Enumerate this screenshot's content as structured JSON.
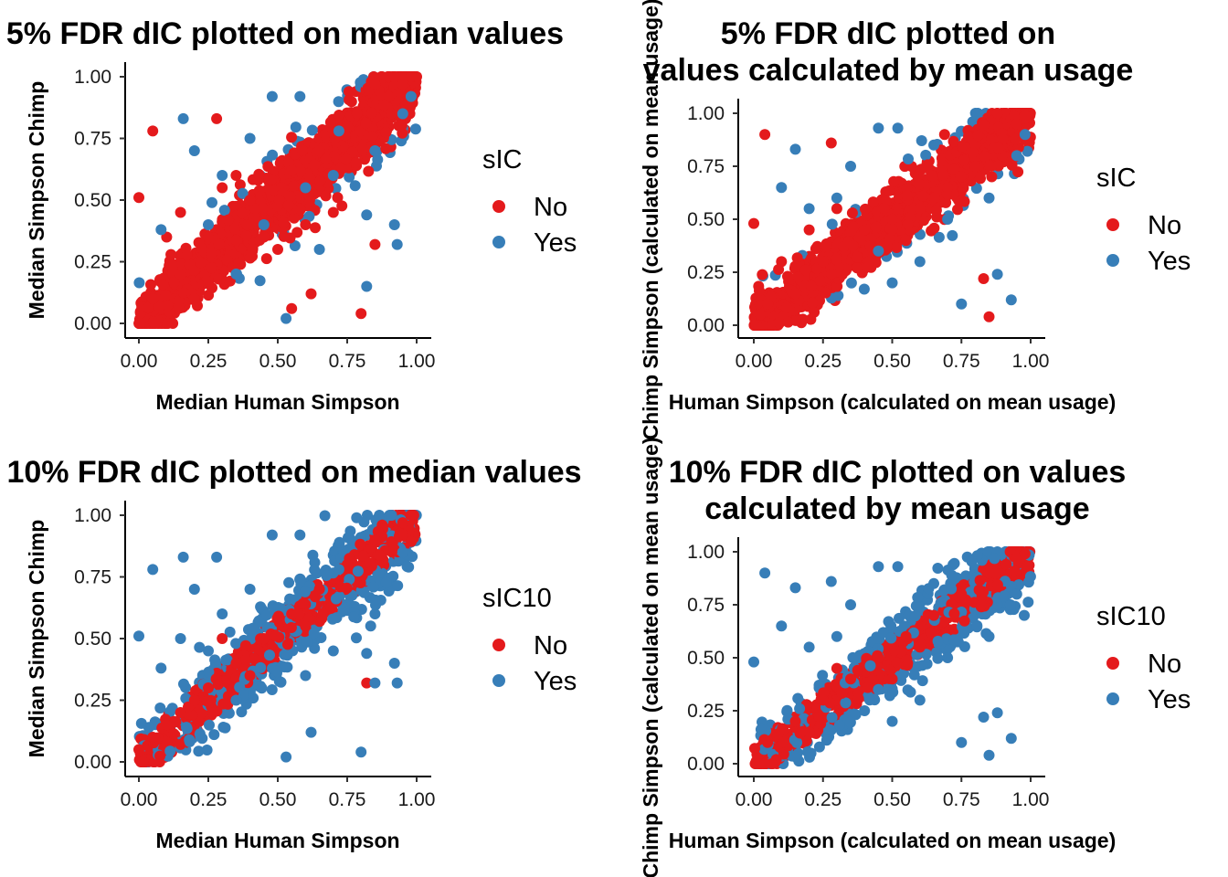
{
  "chart_data": [
    {
      "type": "scatter",
      "title": "5% FDR dIC plotted on median values",
      "xlabel": "Median Human Simpson",
      "ylabel": "Median Simpson Chimp",
      "xlim": [
        0,
        1
      ],
      "ylim": [
        0,
        1
      ],
      "xticks": [
        "0.00",
        "0.25",
        "0.50",
        "0.75",
        "1.00"
      ],
      "yticks": [
        "0.00",
        "0.25",
        "0.50",
        "0.75",
        "1.00"
      ],
      "grid": false,
      "legend": {
        "title": "sIC",
        "placement": "right",
        "entries": [
          "No",
          "Yes"
        ]
      },
      "colors": {
        "No": "#E41A1C",
        "Yes": "#377EB8"
      },
      "series": [
        {
          "name": "No",
          "points": [
            [
              0,
              0.51
            ],
            [
              0.05,
              0.78
            ],
            [
              0.28,
              0.83
            ],
            [
              0.85,
              0.32
            ],
            [
              0.8,
              0.04
            ],
            [
              0.62,
              0.12
            ],
            [
              0.55,
              0.06
            ],
            [
              0.15,
              0.45
            ],
            [
              0.1,
              0.35
            ],
            [
              0.3,
              0.55
            ],
            [
              0.35,
              0.6
            ],
            [
              0.45,
              0.35
            ],
            [
              0.5,
              0.3
            ],
            [
              0.6,
              0.4
            ],
            [
              0.7,
              0.45
            ],
            [
              0.2,
              0.1
            ],
            [
              0.25,
              0.35
            ],
            [
              0.4,
              0.5
            ],
            [
              0.65,
              0.7
            ],
            [
              0.75,
              0.8
            ],
            [
              0.9,
              0.92
            ],
            [
              0.95,
              0.97
            ],
            [
              0.98,
              1.0
            ],
            [
              0.55,
              0.62
            ],
            [
              0.15,
              0.2
            ],
            [
              0.05,
              0.1
            ]
          ]
        },
        {
          "name": "Yes",
          "points": [
            [
              0.48,
              0.92
            ],
            [
              0.58,
              0.92
            ],
            [
              0.16,
              0.83
            ],
            [
              0.72,
              0.78
            ],
            [
              0.93,
              0.32
            ],
            [
              0.82,
              0.15
            ],
            [
              0.53,
              0.02
            ],
            [
              0.82,
              0.44
            ],
            [
              0.92,
              0.4
            ],
            [
              0.08,
              0.38
            ],
            [
              0.2,
              0.7
            ],
            [
              0.3,
              0.6
            ],
            [
              0.45,
              0.4
            ],
            [
              0.35,
              0.2
            ],
            [
              0.6,
              0.55
            ],
            [
              0.7,
              0.6
            ],
            [
              0.85,
              0.7
            ],
            [
              0.95,
              0.85
            ],
            [
              0.98,
              0.92
            ],
            [
              0.4,
              0.75
            ],
            [
              0.25,
              0.4
            ],
            [
              0.65,
              0.3
            ]
          ]
        }
      ]
    },
    {
      "type": "scatter",
      "title": "5% FDR dIC plotted on values calculated by mean usage",
      "title_lines": [
        "5% FDR dIC plotted on",
        "values calculated by mean usage"
      ],
      "xlabel": "Human Simpson (calculated on mean usage)",
      "ylabel": "Chimp Simpson (calculated on mean usage)",
      "xlim": [
        0,
        1
      ],
      "ylim": [
        0,
        1
      ],
      "xticks": [
        "0.00",
        "0.25",
        "0.50",
        "0.75",
        "1.00"
      ],
      "yticks": [
        "0.00",
        "0.25",
        "0.50",
        "0.75",
        "1.00"
      ],
      "grid": false,
      "legend": {
        "title": "sIC",
        "placement": "right",
        "entries": [
          "No",
          "Yes"
        ]
      },
      "colors": {
        "No": "#E41A1C",
        "Yes": "#377EB8"
      },
      "series": [
        {
          "name": "No",
          "points": [
            [
              0,
              0.48
            ],
            [
              0.04,
              0.9
            ],
            [
              0.28,
              0.86
            ],
            [
              0.83,
              0.22
            ],
            [
              0.85,
              0.04
            ],
            [
              0.2,
              0.45
            ],
            [
              0.1,
              0.3
            ],
            [
              0.3,
              0.55
            ],
            [
              0.4,
              0.45
            ],
            [
              0.5,
              0.5
            ],
            [
              0.6,
              0.55
            ],
            [
              0.7,
              0.65
            ],
            [
              0.8,
              0.75
            ],
            [
              0.9,
              0.88
            ],
            [
              0.95,
              0.95
            ],
            [
              0.98,
              0.99
            ],
            [
              0.25,
              0.3
            ],
            [
              0.15,
              0.15
            ],
            [
              0.05,
              0.1
            ],
            [
              0.55,
              0.4
            ]
          ]
        },
        {
          "name": "Yes",
          "points": [
            [
              0.45,
              0.93
            ],
            [
              0.52,
              0.93
            ],
            [
              0.15,
              0.83
            ],
            [
              0.1,
              0.65
            ],
            [
              0.88,
              0.24
            ],
            [
              0.93,
              0.12
            ],
            [
              0.75,
              0.1
            ],
            [
              0.3,
              0.6
            ],
            [
              0.45,
              0.35
            ],
            [
              0.6,
              0.3
            ],
            [
              0.7,
              0.5
            ],
            [
              0.85,
              0.6
            ],
            [
              0.95,
              0.8
            ],
            [
              0.98,
              0.9
            ],
            [
              0.2,
              0.55
            ],
            [
              0.35,
              0.75
            ],
            [
              0.65,
              0.85
            ],
            [
              0.5,
              0.2
            ]
          ]
        }
      ]
    },
    {
      "type": "scatter",
      "title": "10% FDR dIC plotted on median values",
      "xlabel": "Median Human Simpson",
      "ylabel": "Median Simpson Chimp",
      "xlim": [
        0,
        1
      ],
      "ylim": [
        0,
        1
      ],
      "xticks": [
        "0.00",
        "0.25",
        "0.50",
        "0.75",
        "1.00"
      ],
      "yticks": [
        "0.00",
        "0.25",
        "0.50",
        "0.75",
        "1.00"
      ],
      "grid": false,
      "legend": {
        "title": "sIC10",
        "placement": "right",
        "entries": [
          "No",
          "Yes"
        ]
      },
      "colors": {
        "No": "#E41A1C",
        "Yes": "#377EB8"
      },
      "series": [
        {
          "name": "No",
          "points": [
            [
              0,
              0.05
            ],
            [
              0.05,
              0.1
            ],
            [
              0.15,
              0.2
            ],
            [
              0.25,
              0.3
            ],
            [
              0.35,
              0.4
            ],
            [
              0.45,
              0.5
            ],
            [
              0.55,
              0.6
            ],
            [
              0.65,
              0.7
            ],
            [
              0.75,
              0.8
            ],
            [
              0.85,
              0.9
            ],
            [
              0.95,
              0.97
            ],
            [
              0.98,
              1.0
            ],
            [
              0.82,
              0.32
            ],
            [
              0.3,
              0.5
            ],
            [
              0.4,
              0.35
            ],
            [
              0.6,
              0.55
            ],
            [
              0.1,
              0.15
            ],
            [
              0.2,
              0.25
            ]
          ]
        },
        {
          "name": "Yes",
          "points": [
            [
              0,
              0.51
            ],
            [
              0.05,
              0.78
            ],
            [
              0.16,
              0.83
            ],
            [
              0.28,
              0.83
            ],
            [
              0.48,
              0.92
            ],
            [
              0.58,
              0.92
            ],
            [
              0.85,
              0.32
            ],
            [
              0.8,
              0.04
            ],
            [
              0.93,
              0.32
            ],
            [
              0.53,
              0.02
            ],
            [
              0.62,
              0.12
            ],
            [
              0.82,
              0.44
            ],
            [
              0.92,
              0.4
            ],
            [
              0.08,
              0.38
            ],
            [
              0.2,
              0.7
            ],
            [
              0.3,
              0.6
            ],
            [
              0.72,
              0.78
            ],
            [
              0.6,
              0.35
            ],
            [
              0.7,
              0.45
            ],
            [
              0.85,
              0.6
            ],
            [
              0.95,
              0.85
            ],
            [
              0.4,
              0.7
            ],
            [
              0.25,
              0.45
            ],
            [
              0.35,
              0.25
            ],
            [
              0.15,
              0.5
            ]
          ]
        }
      ]
    },
    {
      "type": "scatter",
      "title": "10% FDR dIC plotted on values calculated by mean usage",
      "title_lines": [
        "10% FDR dIC plotted on values",
        "calculated by mean usage"
      ],
      "xlabel": "Human Simpson (calculated on mean usage)",
      "ylabel": "Chimp Simpson (calculated on mean usage)",
      "xlim": [
        0,
        1
      ],
      "ylim": [
        0,
        1
      ],
      "xticks": [
        "0.00",
        "0.25",
        "0.50",
        "0.75",
        "1.00"
      ],
      "yticks": [
        "0.00",
        "0.25",
        "0.50",
        "0.75",
        "1.00"
      ],
      "grid": false,
      "legend": {
        "title": "sIC10",
        "placement": "right",
        "entries": [
          "No",
          "Yes"
        ]
      },
      "colors": {
        "No": "#E41A1C",
        "Yes": "#377EB8"
      },
      "series": [
        {
          "name": "No",
          "points": [
            [
              0.05,
              0.1
            ],
            [
              0.15,
              0.2
            ],
            [
              0.25,
              0.3
            ],
            [
              0.35,
              0.4
            ],
            [
              0.45,
              0.5
            ],
            [
              0.55,
              0.6
            ],
            [
              0.65,
              0.7
            ],
            [
              0.75,
              0.8
            ],
            [
              0.85,
              0.9
            ],
            [
              0.95,
              0.97
            ],
            [
              0.98,
              0.99
            ],
            [
              0.3,
              0.45
            ],
            [
              0.5,
              0.4
            ],
            [
              0.6,
              0.55
            ],
            [
              0.2,
              0.15
            ]
          ]
        },
        {
          "name": "Yes",
          "points": [
            [
              0,
              0.48
            ],
            [
              0.04,
              0.9
            ],
            [
              0.28,
              0.86
            ],
            [
              0.45,
              0.93
            ],
            [
              0.52,
              0.93
            ],
            [
              0.15,
              0.83
            ],
            [
              0.1,
              0.65
            ],
            [
              0.83,
              0.22
            ],
            [
              0.85,
              0.04
            ],
            [
              0.88,
              0.24
            ],
            [
              0.93,
              0.12
            ],
            [
              0.75,
              0.1
            ],
            [
              0.3,
              0.6
            ],
            [
              0.45,
              0.35
            ],
            [
              0.6,
              0.3
            ],
            [
              0.7,
              0.5
            ],
            [
              0.85,
              0.6
            ],
            [
              0.95,
              0.8
            ],
            [
              0.2,
              0.55
            ],
            [
              0.35,
              0.75
            ],
            [
              0.65,
              0.85
            ],
            [
              0.5,
              0.2
            ],
            [
              0.4,
              0.25
            ]
          ]
        }
      ]
    }
  ]
}
